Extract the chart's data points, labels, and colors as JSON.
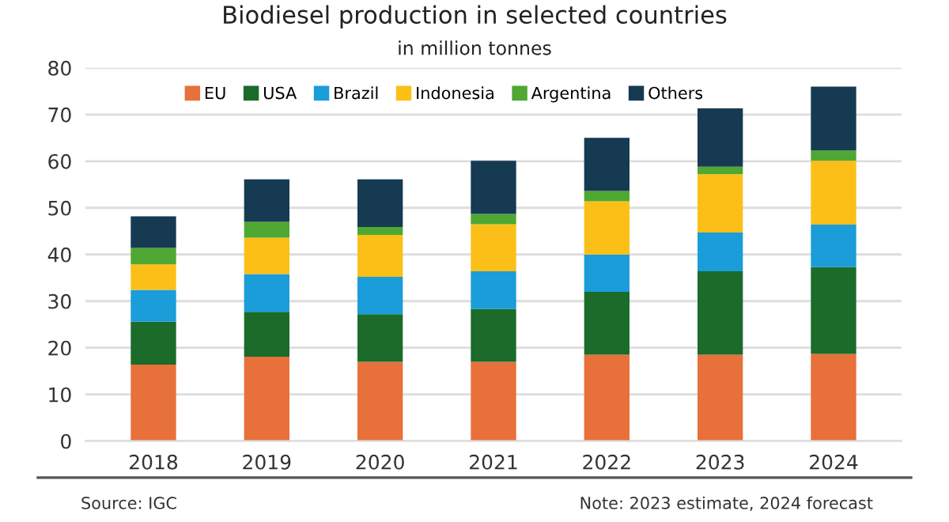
{
  "chart_data": {
    "type": "bar",
    "title": "Biodiesel production in selected countries",
    "subtitle": "in million tonnes",
    "categories": [
      "2018",
      "2019",
      "2020",
      "2021",
      "2022",
      "2023",
      "2024"
    ],
    "stacked": true,
    "series": [
      {
        "name": "EU",
        "color": "#e8703a",
        "values": [
          16.4,
          18.1,
          17.0,
          17.0,
          18.5,
          18.5,
          18.7
        ]
      },
      {
        "name": "USA",
        "color": "#1b6b2a",
        "values": [
          9.2,
          9.6,
          10.2,
          11.3,
          13.5,
          17.9,
          18.6
        ]
      },
      {
        "name": "Brazil",
        "color": "#1a9dd9",
        "values": [
          6.8,
          8.1,
          8.0,
          8.1,
          8.0,
          8.3,
          9.1
        ]
      },
      {
        "name": "Indonesia",
        "color": "#fbbf17",
        "values": [
          5.5,
          7.8,
          9.0,
          10.1,
          11.4,
          12.5,
          13.7
        ]
      },
      {
        "name": "Argentina",
        "color": "#4ea832",
        "values": [
          3.5,
          3.4,
          1.7,
          2.2,
          2.2,
          1.6,
          2.2
        ]
      },
      {
        "name": "Others",
        "color": "#163a52",
        "values": [
          6.8,
          9.1,
          10.2,
          11.4,
          11.4,
          12.5,
          13.7
        ]
      }
    ],
    "ylim": [
      0,
      80
    ],
    "yticks": [
      0,
      10,
      20,
      30,
      40,
      50,
      60,
      70,
      80
    ],
    "grid": "y",
    "legend": "top",
    "annotations": [
      "Source: IGC",
      "Note: 2023 estimate, 2024 forecast"
    ]
  }
}
